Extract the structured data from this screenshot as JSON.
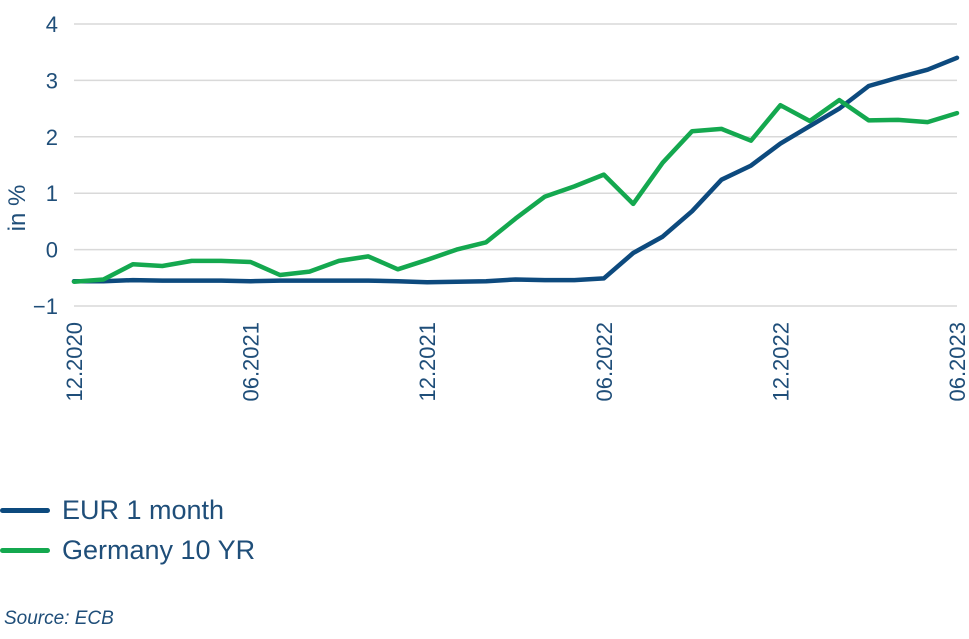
{
  "chart_data": {
    "type": "line",
    "title": "",
    "xlabel": "",
    "ylabel": "in %",
    "ylim": [
      -1,
      4
    ],
    "yticks": [
      "4",
      "3",
      "2",
      "1",
      "0",
      "-1"
    ],
    "xtick_labels": [
      "12.2020",
      "06.2021",
      "12.2021",
      "06.2022",
      "12.2022",
      "06.2023"
    ],
    "grid": true,
    "legend_position": "bottom-left",
    "x": [
      "12.2020",
      "01.2021",
      "02.2021",
      "03.2021",
      "04.2021",
      "05.2021",
      "06.2021",
      "07.2021",
      "08.2021",
      "09.2021",
      "10.2021",
      "11.2021",
      "12.2021",
      "01.2022",
      "02.2022",
      "03.2022",
      "04.2022",
      "05.2022",
      "06.2022",
      "07.2022",
      "08.2022",
      "09.2022",
      "10.2022",
      "11.2022",
      "12.2022",
      "01.2023",
      "02.2023",
      "03.2023",
      "04.2023",
      "05.2023",
      "06.2023"
    ],
    "series": [
      {
        "name": "EUR 1 month",
        "color": "#0d4a7e",
        "values": [
          -0.56,
          -0.56,
          -0.54,
          -0.55,
          -0.55,
          -0.55,
          -0.56,
          -0.55,
          -0.55,
          -0.55,
          -0.55,
          -0.56,
          -0.58,
          -0.57,
          -0.56,
          -0.53,
          -0.54,
          -0.54,
          -0.51,
          -0.06,
          0.23,
          0.68,
          1.24,
          1.49,
          1.88,
          2.19,
          2.5,
          2.9,
          3.05,
          3.19,
          3.4
        ]
      },
      {
        "name": "Germany 10 YR",
        "color": "#14a84f",
        "values": [
          -0.57,
          -0.53,
          -0.26,
          -0.29,
          -0.2,
          -0.2,
          -0.22,
          -0.45,
          -0.39,
          -0.2,
          -0.12,
          -0.35,
          -0.18,
          0.0,
          0.13,
          0.55,
          0.94,
          1.12,
          1.33,
          0.81,
          1.54,
          2.1,
          2.14,
          1.93,
          2.56,
          2.28,
          2.65,
          2.29,
          2.3,
          2.26,
          2.42
        ]
      }
    ]
  },
  "footer": {
    "source": "Source: ECB"
  }
}
